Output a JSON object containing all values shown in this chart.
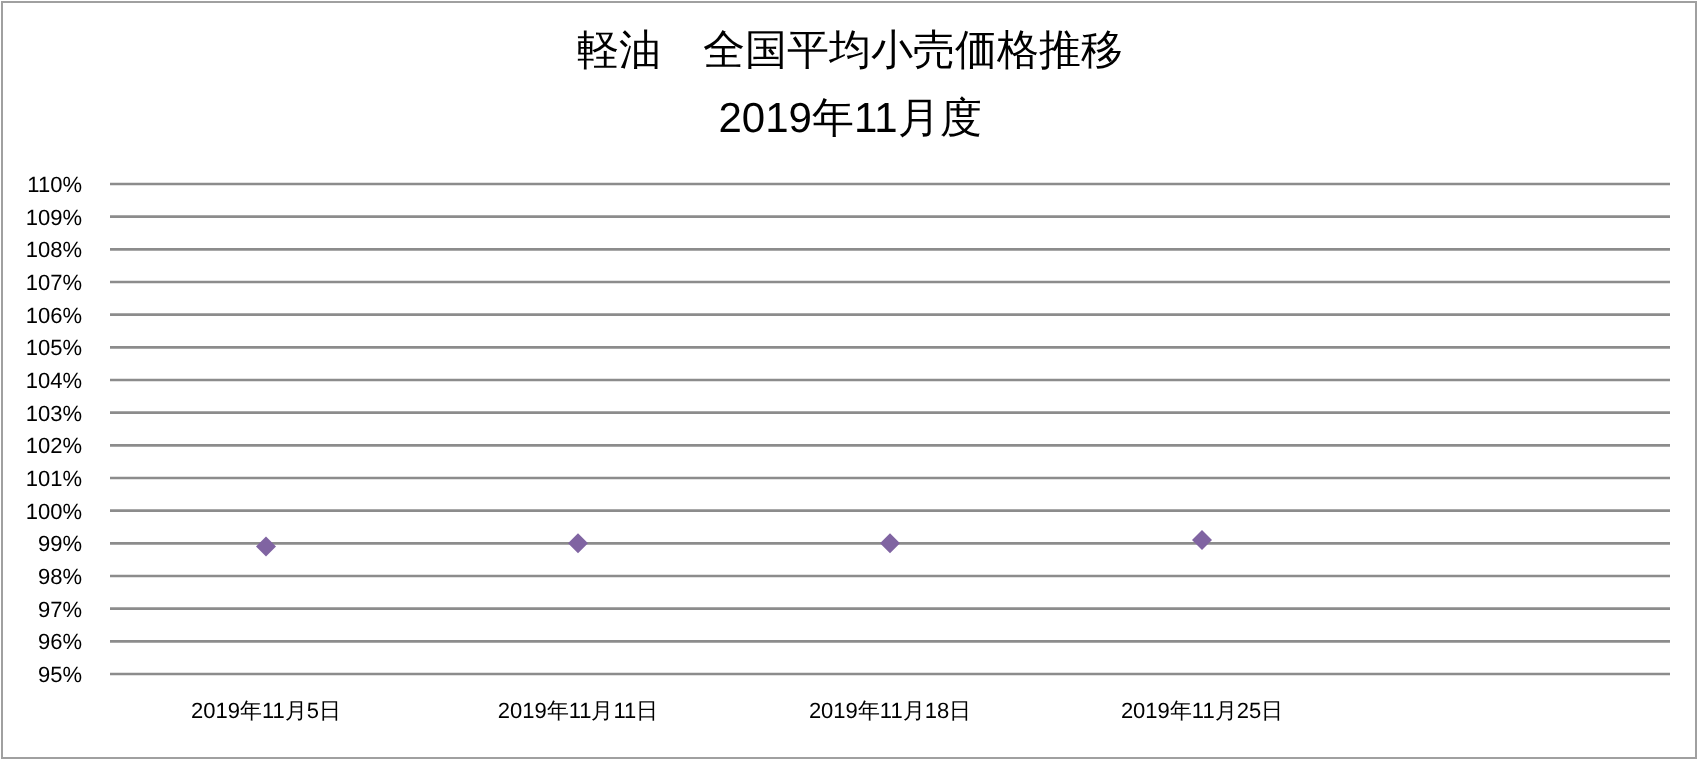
{
  "chart_data": {
    "type": "scatter",
    "title": "軽油　全国平均小売価格推移",
    "subtitle": "2019年11月度",
    "categories": [
      "2019年11月5日",
      "2019年11月11日",
      "2019年11月18日",
      "2019年11月25日",
      null
    ],
    "series": [
      {
        "color": "#8064a2",
        "values": [
          98.9,
          99.0,
          99.0,
          99.1,
          null
        ]
      }
    ],
    "marker": "diamond",
    "grid": "y",
    "ylim": [
      95,
      110
    ],
    "yticks": [
      {
        "value": 95,
        "label": "95%"
      },
      {
        "value": 96,
        "label": "96%"
      },
      {
        "value": 97,
        "label": "97%"
      },
      {
        "value": 98,
        "label": "98%"
      },
      {
        "value": 99,
        "label": "99%"
      },
      {
        "value": 100,
        "label": "100%"
      },
      {
        "value": 101,
        "label": "101%"
      },
      {
        "value": 102,
        "label": "102%"
      },
      {
        "value": 103,
        "label": "103%"
      },
      {
        "value": 104,
        "label": "104%"
      },
      {
        "value": 105,
        "label": "105%"
      },
      {
        "value": 106,
        "label": "106%"
      },
      {
        "value": 107,
        "label": "107%"
      },
      {
        "value": 108,
        "label": "108%"
      },
      {
        "value": 109,
        "label": "109%"
      },
      {
        "value": 110,
        "label": "110%"
      }
    ]
  }
}
